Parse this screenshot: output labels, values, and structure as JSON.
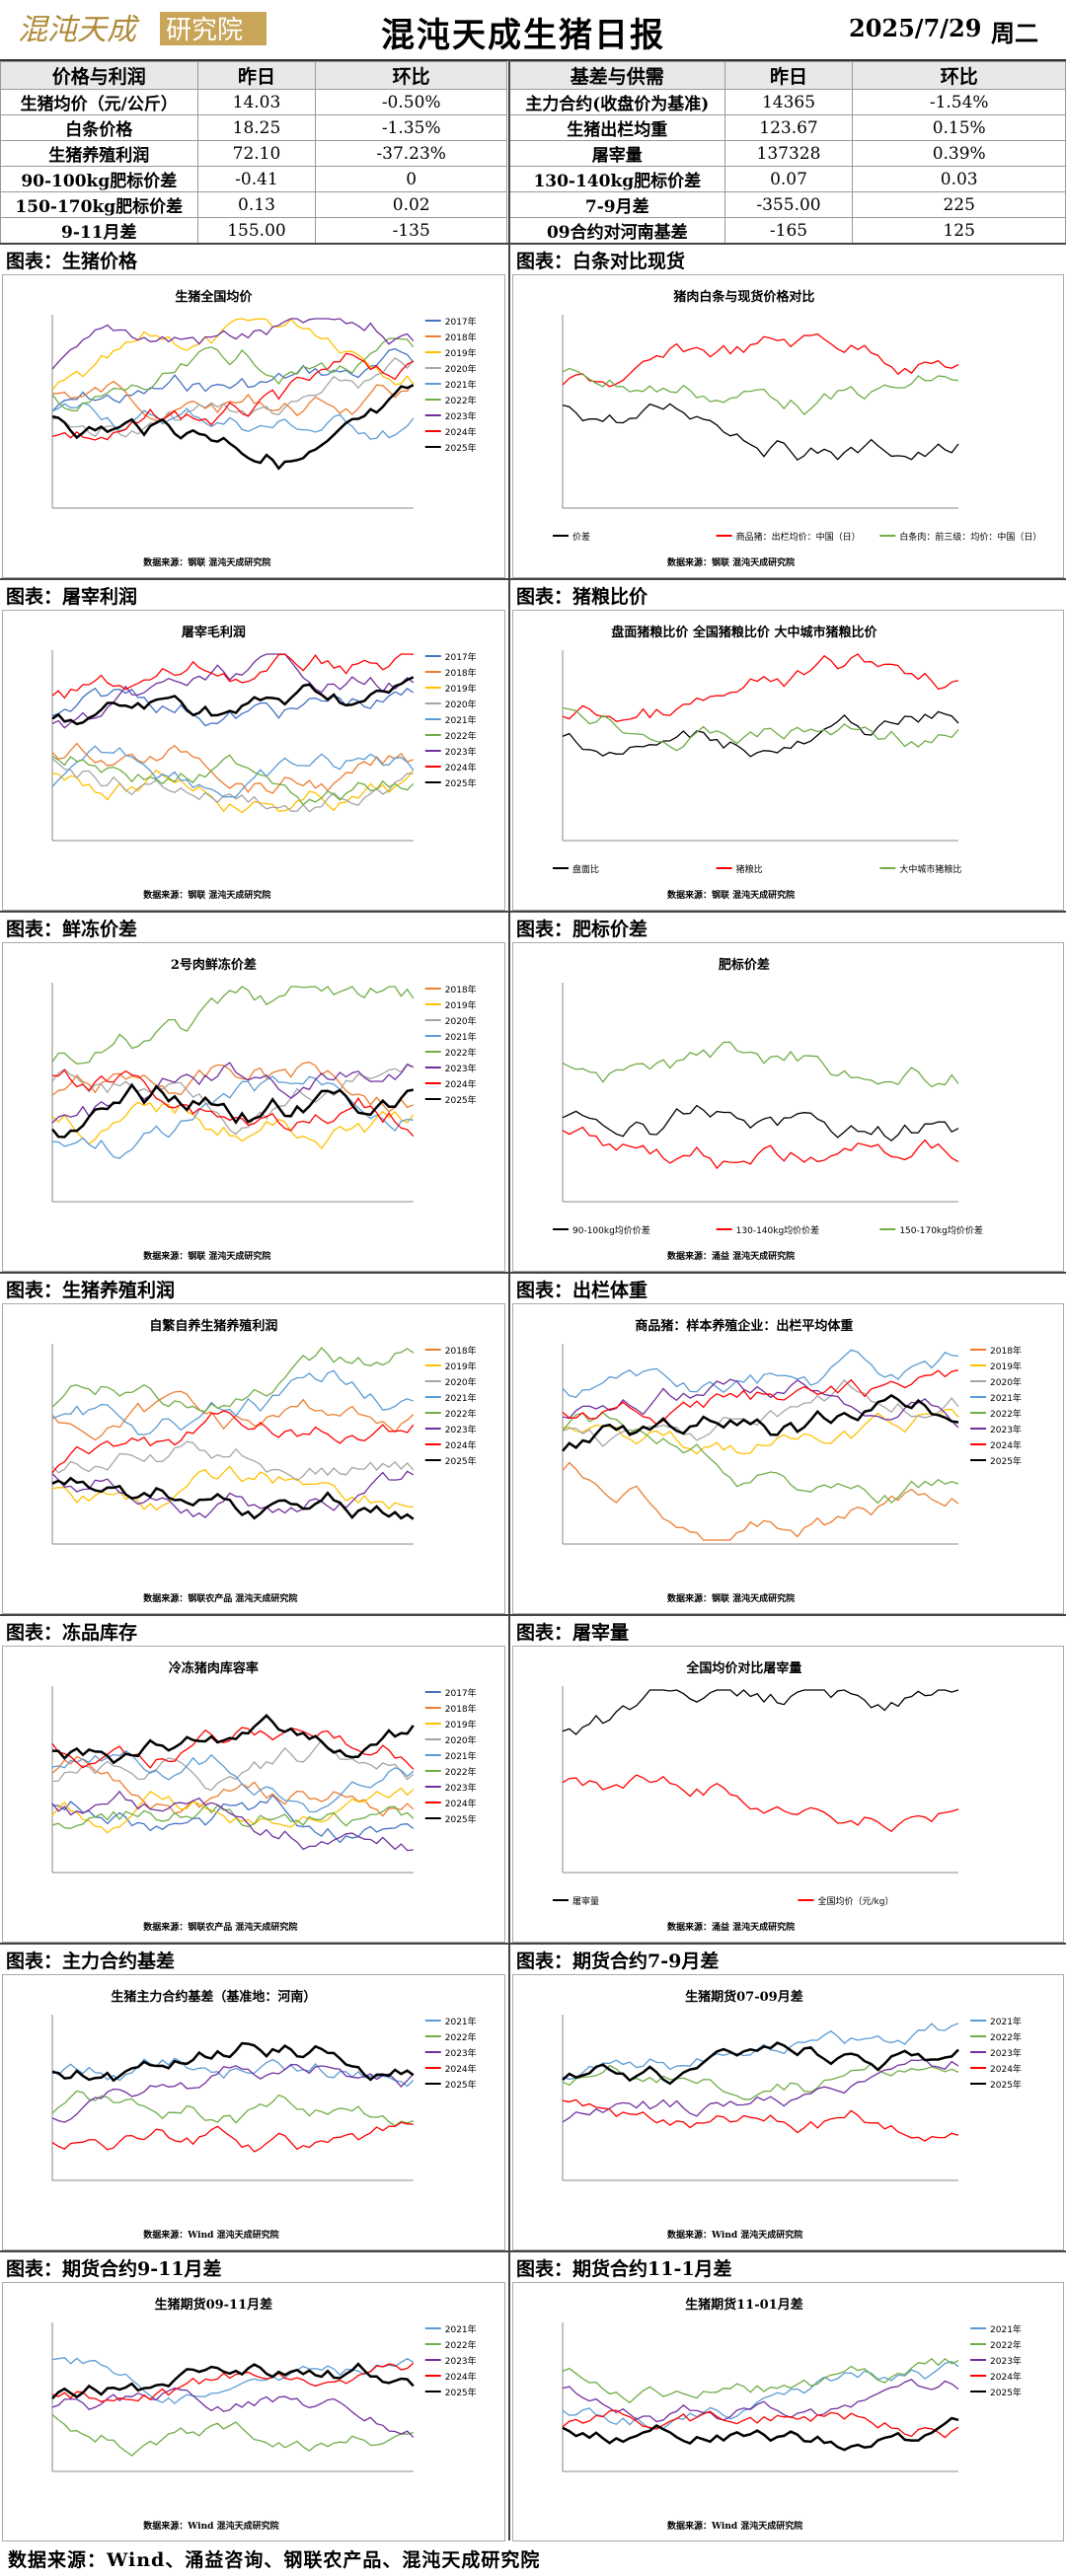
{
  "header": {
    "logo_text": "混沌天成研究院",
    "title": "混沌天成生猪日报",
    "date": "2025/7/29",
    "weekday": "周二"
  },
  "left_table": {
    "headers": [
      "价格与利润",
      "昨日",
      "环比"
    ],
    "rows": [
      [
        "生猪均价（元/公斤）",
        "14.03",
        "-0.50%"
      ],
      [
        "白条价格",
        "18.25",
        "-1.35%"
      ],
      [
        "生猪养殖利润",
        "72.10",
        "-37.23%"
      ],
      [
        "90-100kg肥标价差",
        "-0.41",
        "0"
      ],
      [
        "150-170kg肥标价差",
        "0.13",
        "0.02"
      ],
      [
        "9-11月差",
        "155.00",
        "-135"
      ]
    ]
  },
  "right_table": {
    "headers": [
      "基差与供需",
      "昨日",
      "环比"
    ],
    "rows": [
      [
        "主力合约(收盘价为基准)",
        "14365",
        "-1.54%"
      ],
      [
        "生猪出栏均重",
        "123.67",
        "0.15%"
      ],
      [
        "屠宰量",
        "137328",
        "0.39%"
      ],
      [
        "130-140kg肥标价差",
        "0.07",
        "0.03"
      ],
      [
        "7-9月差",
        "-355.00",
        "225"
      ],
      [
        "09合约对河南基差",
        "-165",
        "125"
      ]
    ]
  },
  "sections": [
    {
      "label": "图表：生猪价格",
      "chart_title": "生猪全国均价",
      "source": "数据来源：钢联  混沌天成研究院",
      "legend": [
        "2017年",
        "2018年",
        "2019年",
        "2020年",
        "2021年",
        "2022年",
        "2023年",
        "2024年",
        "2025年"
      ]
    },
    {
      "label": "图表：白条对比现货",
      "chart_title": "猪肉白条与现货价格对比",
      "source": "数据来源：钢联  混沌天成研究院",
      "legend": [
        "价差",
        "商品猪：出栏均价：中国（日）",
        "白条肉：前三级：均价：中国（日）"
      ]
    },
    {
      "label": "图表：屠宰利润",
      "chart_title": "屠宰毛利润",
      "source": "数据来源：钢联  混沌天成研究院",
      "legend": [
        "2017年",
        "2018年",
        "2019年",
        "2020年",
        "2021年",
        "2022年",
        "2023年",
        "2024年",
        "2025年"
      ]
    },
    {
      "label": "图表：猪粮比价",
      "chart_title": "盘面猪粮比价  全国猪粮比价  大中城市猪粮比价",
      "source": "数据来源：钢联  混沌天成研究院",
      "legend": [
        "盘面比",
        "猪粮比",
        "大中城市猪粮比"
      ]
    },
    {
      "label": "图表：鲜冻价差",
      "chart_title": "2号肉鲜冻价差",
      "source": "数据来源：钢联  混沌天成研究院",
      "legend": [
        "2018年",
        "2019年",
        "2020年",
        "2021年",
        "2022年",
        "2023年",
        "2024年",
        "2025年"
      ]
    },
    {
      "label": "图表：肥标价差",
      "chart_title": "肥标价差",
      "source": "数据来源：涌益  混沌天成研究院",
      "legend": [
        "90-100kg均价价差",
        "130-140kg均价价差",
        "150-170kg均价价差"
      ]
    },
    {
      "label": "图表：生猪养殖利润",
      "chart_title": "自繁自养生猪养殖利润",
      "source": "数据来源：钢联农产品  混沌天成研究院",
      "legend": [
        "2018年",
        "2019年",
        "2020年",
        "2021年",
        "2022年",
        "2023年",
        "2024年",
        "2025年"
      ]
    },
    {
      "label": "图表：出栏体重",
      "chart_title": "商品猪：样本养殖企业：出栏平均体重",
      "source": "数据来源：钢联  混沌天成研究院",
      "legend": [
        "2018年",
        "2019年",
        "2020年",
        "2021年",
        "2022年",
        "2023年",
        "2024年",
        "2025年"
      ]
    },
    {
      "label": "图表：冻品库存",
      "chart_title": "冷冻猪肉库容率",
      "source": "数据来源：钢联农产品  混沌天成研究院",
      "legend": [
        "2017年",
        "2018年",
        "2019年",
        "2020年",
        "2021年",
        "2022年",
        "2023年",
        "2024年",
        "2025年"
      ]
    },
    {
      "label": "图表：屠宰量",
      "chart_title": "全国均价对比屠宰量",
      "source": "数据来源：涌益  混沌天成研究院",
      "legend": [
        "屠宰量",
        "全国均价（元/kg）"
      ]
    },
    {
      "label": "图表：主力合约基差",
      "chart_title": "生猪主力合约基差（基准地：河南）",
      "source": "数据来源：Wind  混沌天成研究院",
      "legend": [
        "2021年",
        "2022年",
        "2023年",
        "2024年",
        "2025年"
      ]
    },
    {
      "label": "图表：期货合约7-9月差",
      "chart_title": "生猪期货07-09月差",
      "source": "数据来源：Wind  混沌天成研究院",
      "legend": [
        "2021年",
        "2022年",
        "2023年",
        "2024年",
        "2025年"
      ]
    },
    {
      "label": "图表：期货合约9-11月差",
      "chart_title": "生猪期货09-11月差",
      "source": "数据来源：Wind  混沌天成研究院",
      "legend": [
        "2021年",
        "2022年",
        "2023年",
        "2024年",
        "2025年"
      ]
    },
    {
      "label": "图表：期货合约11-1月差",
      "chart_title": "生猪期货11-01月差",
      "source": "数据来源：Wind  混沌天成研究院",
      "legend": [
        "2021年",
        "2022年",
        "2023年",
        "2024年",
        "2025年"
      ]
    }
  ],
  "footer": "数据来源：Wind、涌益咨询、钢联农产品、混沌天成研究院",
  "colors": {
    "y2017": "#4472c4",
    "y2018": "#ed7d31",
    "y2019": "#ffc000",
    "y2020": "#a5a5a5",
    "y2021": "#5b9bd5",
    "y2022": "#70ad47",
    "y2023": "#7030a0",
    "y2024": "#ff0000",
    "y2025": "#000000",
    "gray": "#bfbfbf",
    "cyan": "#00b0f0"
  }
}
